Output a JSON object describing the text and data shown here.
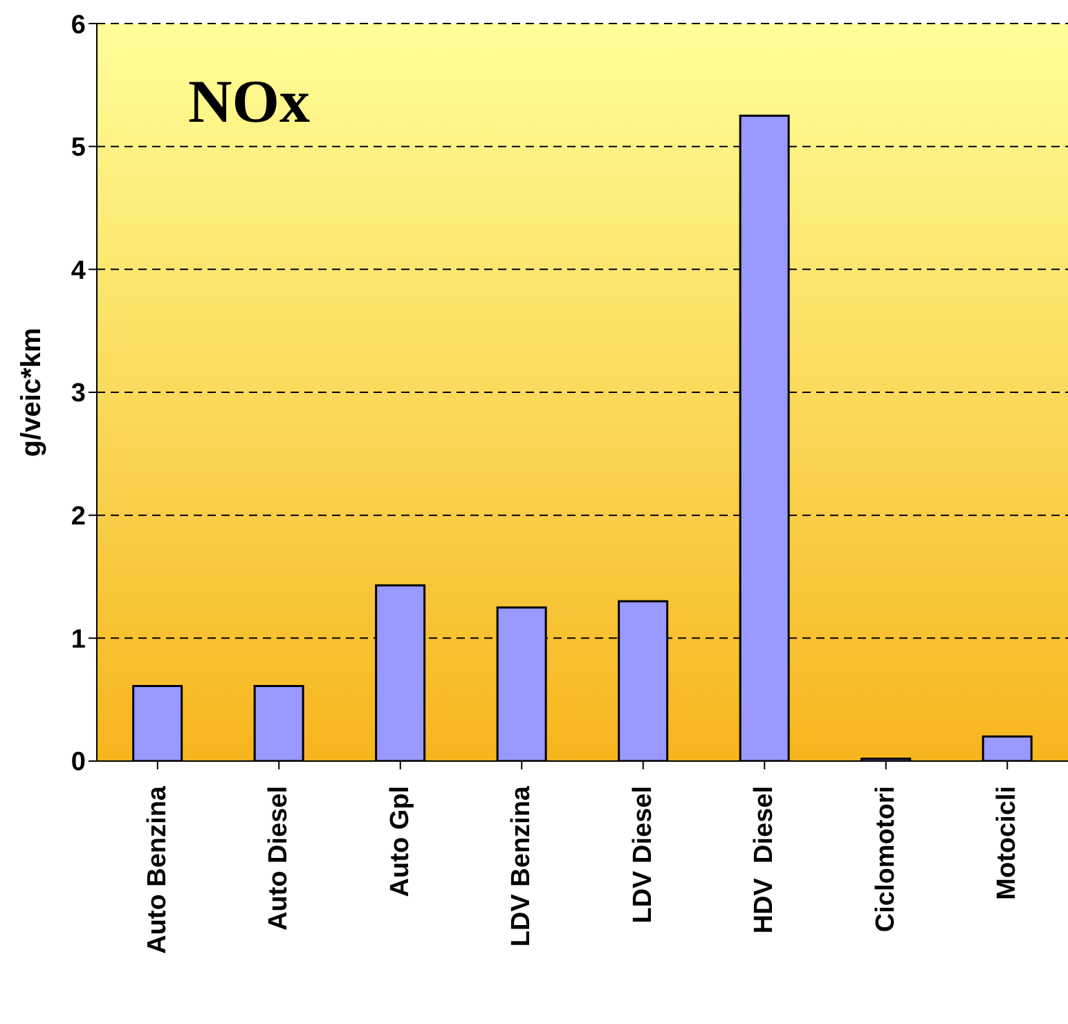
{
  "chart_data": {
    "type": "bar",
    "title": "NOx",
    "ylabel": "g/veic*km",
    "categories": [
      "Auto Benzina",
      "Auto Diesel",
      "Auto Gpl",
      "LDV Benzina",
      "LDV Diesel",
      "HDV  Diesel",
      "Ciclomotori",
      "Motocicli"
    ],
    "values": [
      0.61,
      0.61,
      1.43,
      1.25,
      1.3,
      5.25,
      0.02,
      0.2
    ],
    "color": "#9999ff",
    "ylim": [
      0,
      6
    ],
    "yticks": [
      0,
      1,
      2,
      3,
      4,
      5,
      6
    ],
    "grid": "y"
  }
}
